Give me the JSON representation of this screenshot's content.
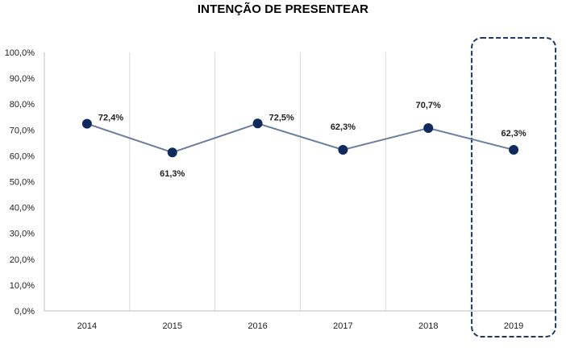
{
  "chart_data": {
    "type": "line",
    "title": "INTENÇÃO DE PRESENTEAR",
    "xlabel": "",
    "ylabel": "",
    "categories": [
      "2014",
      "2015",
      "2016",
      "2017",
      "2018",
      "2019"
    ],
    "series": [
      {
        "values": [
          72.4,
          61.3,
          72.5,
          62.3,
          70.7,
          62.3
        ],
        "labels": [
          "72,4%",
          "61,3%",
          "72,5%",
          "62,3%",
          "70,7%",
          "62,3%"
        ]
      }
    ],
    "ylim": [
      0,
      100
    ],
    "y_ticks": [
      "0,0%",
      "10,0%",
      "20,0%",
      "30,0%",
      "40,0%",
      "50,0%",
      "60,0%",
      "70,0%",
      "80,0%",
      "90,0%",
      "100,0%"
    ],
    "grid": "vertical",
    "highlight_category": "2019",
    "colors": {
      "line": "#6b7e9e",
      "marker": "#0f2a5c",
      "highlight_border": "#1f3864",
      "grid": "#d9d9d9"
    }
  }
}
